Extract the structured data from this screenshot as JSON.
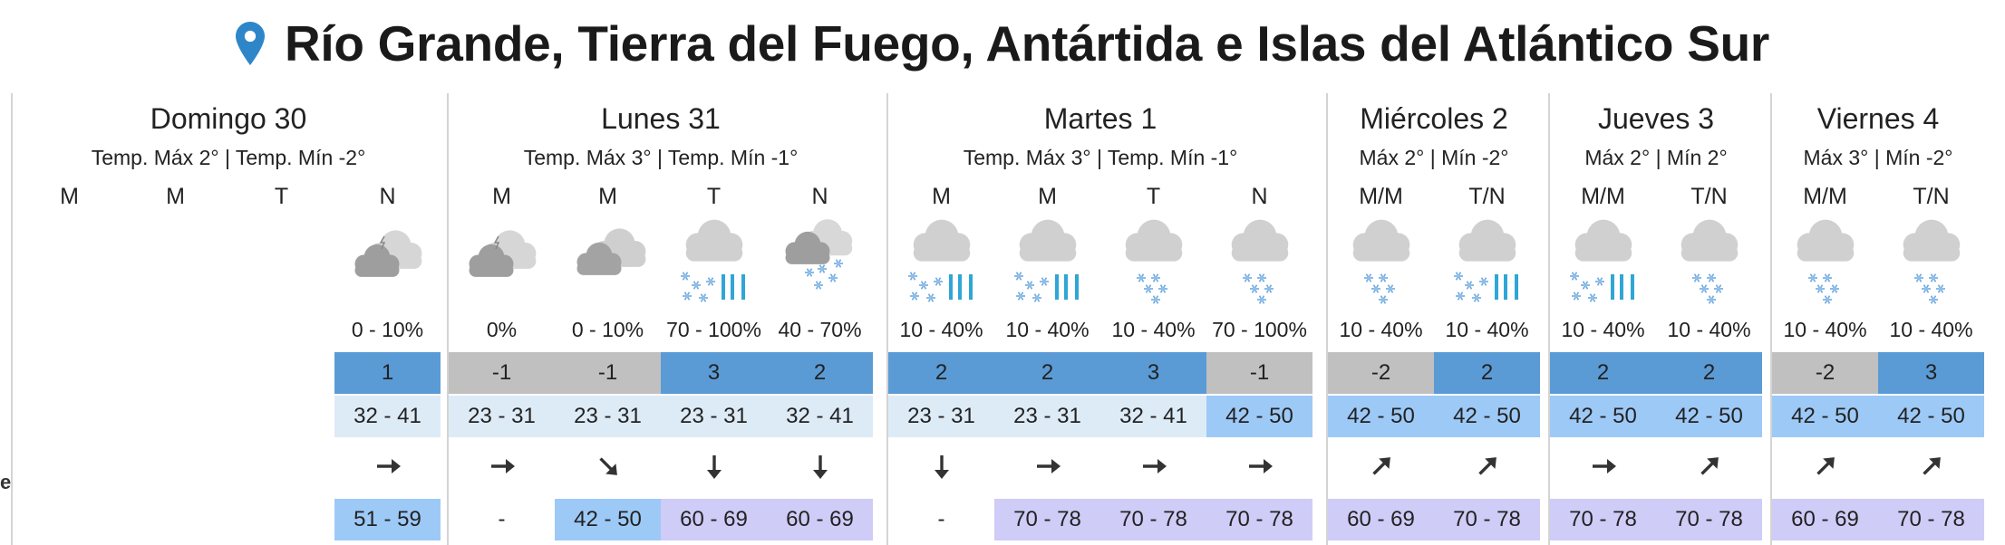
{
  "header": {
    "location": "Río Grande, Tierra del Fuego, Antártida e Islas del Atlántico Sur",
    "pin_icon": "location-pin-icon",
    "pin_color": "#2e86c9"
  },
  "side_label": "e",
  "colors": {
    "temp_warm": "#5b9bd5",
    "temp_cold": "#c0c0c0",
    "range_light": "#ddebf7",
    "range_mid": "#9dc9f7",
    "gust_purple": "#cfccf7"
  },
  "days": [
    {
      "name": "Domingo 30",
      "temps": "Temp. Máx 2° | Temp. Mín -2°",
      "periods": [
        {
          "label": "M",
          "icon": "",
          "prob": "",
          "temp": null,
          "range": "",
          "arrow": "",
          "gust": ""
        },
        {
          "label": "M",
          "icon": "",
          "prob": "",
          "temp": null,
          "range": "",
          "arrow": "",
          "gust": ""
        },
        {
          "label": "T",
          "icon": "",
          "prob": "",
          "temp": null,
          "range": "",
          "arrow": "",
          "gust": ""
        },
        {
          "label": "N",
          "icon": "night-cloudy-icon",
          "prob": "0 - 10%",
          "temp": "1",
          "range": "32 - 41",
          "arrow": "arrow-east",
          "gust": "51 - 59"
        }
      ]
    },
    {
      "name": "Lunes 31",
      "temps": "Temp. Máx 3° | Temp. Mín -1°",
      "periods": [
        {
          "label": "M",
          "icon": "night-cloudy-icon",
          "prob": "0%",
          "temp": "-1",
          "range": "23 - 31",
          "arrow": "arrow-east",
          "gust": "-"
        },
        {
          "label": "M",
          "icon": "cloudy-icon",
          "prob": "0 - 10%",
          "temp": "-1",
          "range": "23 - 31",
          "arrow": "arrow-southeast",
          "gust": "42 - 50"
        },
        {
          "label": "T",
          "icon": "snow-rain-icon",
          "prob": "70 - 100%",
          "temp": "3",
          "range": "23 - 31",
          "arrow": "arrow-south",
          "gust": "60 - 69"
        },
        {
          "label": "N",
          "icon": "night-snow-icon",
          "prob": "40 - 70%",
          "temp": "2",
          "range": "32 - 41",
          "arrow": "arrow-south",
          "gust": "60 - 69"
        }
      ]
    },
    {
      "name": "Martes 1",
      "temps": "Temp. Máx 3° | Temp. Mín -1°",
      "periods": [
        {
          "label": "M",
          "icon": "snow-rain-icon",
          "prob": "10 - 40%",
          "temp": "2",
          "range": "23 - 31",
          "arrow": "arrow-south",
          "gust": "-"
        },
        {
          "label": "M",
          "icon": "snow-rain-icon",
          "prob": "10 - 40%",
          "temp": "2",
          "range": "23 - 31",
          "arrow": "arrow-east",
          "gust": "70 - 78"
        },
        {
          "label": "T",
          "icon": "snow-icon",
          "prob": "10 - 40%",
          "temp": "3",
          "range": "32 - 41",
          "arrow": "arrow-east",
          "gust": "70 - 78"
        },
        {
          "label": "N",
          "icon": "snow-icon",
          "prob": "70 - 100%",
          "temp": "-1",
          "range": "42 - 50",
          "arrow": "arrow-east",
          "gust": "70 - 78"
        }
      ]
    },
    {
      "name": "Miércoles 2",
      "temps": "Máx 2° | Mín -2°",
      "periods": [
        {
          "label": "M/M",
          "icon": "snow-icon",
          "prob": "10 - 40%",
          "temp": "-2",
          "range": "42 - 50",
          "arrow": "arrow-northeast",
          "gust": "60 - 69"
        },
        {
          "label": "T/N",
          "icon": "snow-rain-icon",
          "prob": "10 - 40%",
          "temp": "2",
          "range": "42 - 50",
          "arrow": "arrow-northeast",
          "gust": "70 - 78"
        }
      ]
    },
    {
      "name": "Jueves 3",
      "temps": "Máx 2° | Mín 2°",
      "periods": [
        {
          "label": "M/M",
          "icon": "snow-rain-icon",
          "prob": "10 - 40%",
          "temp": "2",
          "range": "42 - 50",
          "arrow": "arrow-east",
          "gust": "70 - 78"
        },
        {
          "label": "T/N",
          "icon": "snow-icon",
          "prob": "10 - 40%",
          "temp": "2",
          "range": "42 - 50",
          "arrow": "arrow-northeast",
          "gust": "70 - 78"
        }
      ]
    },
    {
      "name": "Viernes 4",
      "temps": "Máx 3° | Mín -2°",
      "periods": [
        {
          "label": "M/M",
          "icon": "snow-icon",
          "prob": "10 - 40%",
          "temp": "-2",
          "range": "42 - 50",
          "arrow": "arrow-northeast",
          "gust": "60 - 69"
        },
        {
          "label": "T/N",
          "icon": "snow-icon",
          "prob": "10 - 40%",
          "temp": "3",
          "range": "42 - 50",
          "arrow": "arrow-northeast",
          "gust": "70 - 78"
        }
      ]
    }
  ]
}
